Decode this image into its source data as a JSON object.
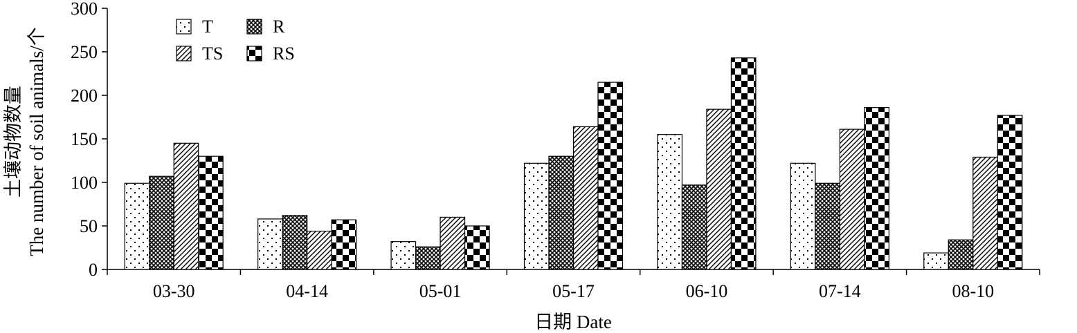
{
  "chart_data": {
    "type": "bar",
    "categories": [
      "03-30",
      "04-14",
      "05-01",
      "05-17",
      "06-10",
      "07-14",
      "08-10"
    ],
    "series": [
      {
        "name": "T",
        "pattern": "dots",
        "values": [
          99,
          58,
          32,
          122,
          155,
          122,
          19
        ]
      },
      {
        "name": "R",
        "pattern": "crosshatch",
        "values": [
          107,
          62,
          26,
          130,
          97,
          99,
          34
        ]
      },
      {
        "name": "TS",
        "pattern": "diagonal",
        "values": [
          145,
          44,
          60,
          164,
          184,
          161,
          129
        ]
      },
      {
        "name": "RS",
        "pattern": "checkerboard",
        "values": [
          130,
          57,
          50,
          215,
          243,
          186,
          177
        ]
      }
    ],
    "xlabel": "日期 Date",
    "ylabel_line1": "土壤动物数量",
    "ylabel_line2": "The number of soil animals/个",
    "ylim": [
      0,
      300
    ],
    "yticks": [
      0,
      50,
      100,
      150,
      200,
      250,
      300
    ],
    "legend_placement": "top-left",
    "grid": false
  }
}
